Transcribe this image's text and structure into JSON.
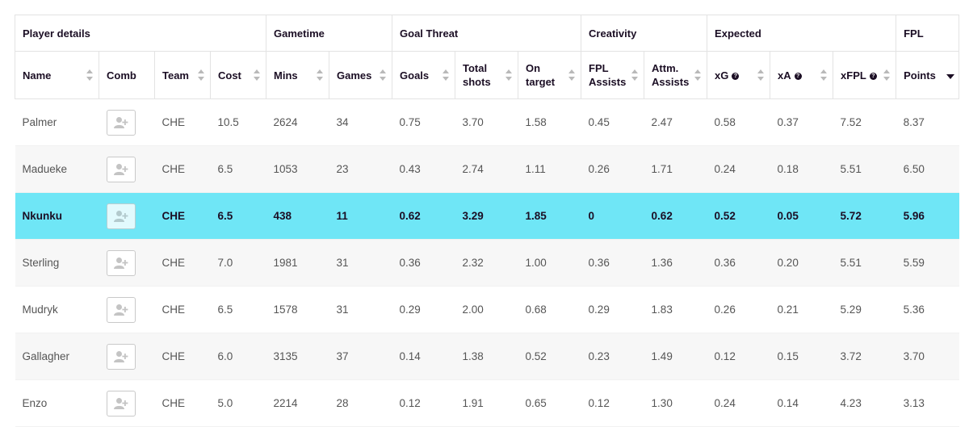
{
  "groups": [
    {
      "label": "Player details"
    },
    {
      "label": "Gametime"
    },
    {
      "label": "Goal Threat"
    },
    {
      "label": "Creativity"
    },
    {
      "label": "Expected"
    },
    {
      "label": "FPL"
    }
  ],
  "columns": {
    "name": "Name",
    "comb": "Comb",
    "team": "Team",
    "cost": "Cost",
    "mins": "Mins",
    "games": "Games",
    "goals": "Goals",
    "shots_1": "Total",
    "shots_2": "shots",
    "target_1": "On",
    "target_2": "target",
    "fplast_1": "FPL",
    "fplast_2": "Assists",
    "attm_1": "Attm.",
    "attm_2": "Assists",
    "xg": "xG",
    "xa": "xA",
    "xfpl": "xFPL",
    "points": "Points"
  },
  "icons": {
    "help": "question-circle-icon",
    "add": "add-player-icon",
    "sort": "sort-arrows-icon"
  },
  "colors": {
    "highlight_row": "#6fe6f6",
    "alt_row": "#f7f7f7"
  },
  "sort": {
    "column": "points",
    "direction": "descending"
  },
  "highlighted_player": "Nkunku",
  "rows": [
    {
      "name": "Palmer",
      "team": "CHE",
      "cost": "10.5",
      "mins": "2624",
      "games": "34",
      "goals": "0.75",
      "shots": "3.70",
      "target": "1.58",
      "fplast": "0.45",
      "attm": "2.47",
      "xg": "0.58",
      "xa": "0.37",
      "xfpl": "7.52",
      "points": "8.37"
    },
    {
      "name": "Madueke",
      "team": "CHE",
      "cost": "6.5",
      "mins": "1053",
      "games": "23",
      "goals": "0.43",
      "shots": "2.74",
      "target": "1.11",
      "fplast": "0.26",
      "attm": "1.71",
      "xg": "0.24",
      "xa": "0.18",
      "xfpl": "5.51",
      "points": "6.50"
    },
    {
      "name": "Nkunku",
      "team": "CHE",
      "cost": "6.5",
      "mins": "438",
      "games": "11",
      "goals": "0.62",
      "shots": "3.29",
      "target": "1.85",
      "fplast": "0",
      "attm": "0.62",
      "xg": "0.52",
      "xa": "0.05",
      "xfpl": "5.72",
      "points": "5.96"
    },
    {
      "name": "Sterling",
      "team": "CHE",
      "cost": "7.0",
      "mins": "1981",
      "games": "31",
      "goals": "0.36",
      "shots": "2.32",
      "target": "1.00",
      "fplast": "0.36",
      "attm": "1.36",
      "xg": "0.36",
      "xa": "0.20",
      "xfpl": "5.51",
      "points": "5.59"
    },
    {
      "name": "Mudryk",
      "team": "CHE",
      "cost": "6.5",
      "mins": "1578",
      "games": "31",
      "goals": "0.29",
      "shots": "2.00",
      "target": "0.68",
      "fplast": "0.29",
      "attm": "1.83",
      "xg": "0.26",
      "xa": "0.21",
      "xfpl": "5.29",
      "points": "5.36"
    },
    {
      "name": "Gallagher",
      "team": "CHE",
      "cost": "6.0",
      "mins": "3135",
      "games": "37",
      "goals": "0.14",
      "shots": "1.38",
      "target": "0.52",
      "fplast": "0.23",
      "attm": "1.49",
      "xg": "0.12",
      "xa": "0.15",
      "xfpl": "3.72",
      "points": "3.70"
    },
    {
      "name": "Enzo",
      "team": "CHE",
      "cost": "5.0",
      "mins": "2214",
      "games": "28",
      "goals": "0.12",
      "shots": "1.91",
      "target": "0.65",
      "fplast": "0.12",
      "attm": "1.30",
      "xg": "0.24",
      "xa": "0.14",
      "xfpl": "4.23",
      "points": "3.13"
    }
  ]
}
